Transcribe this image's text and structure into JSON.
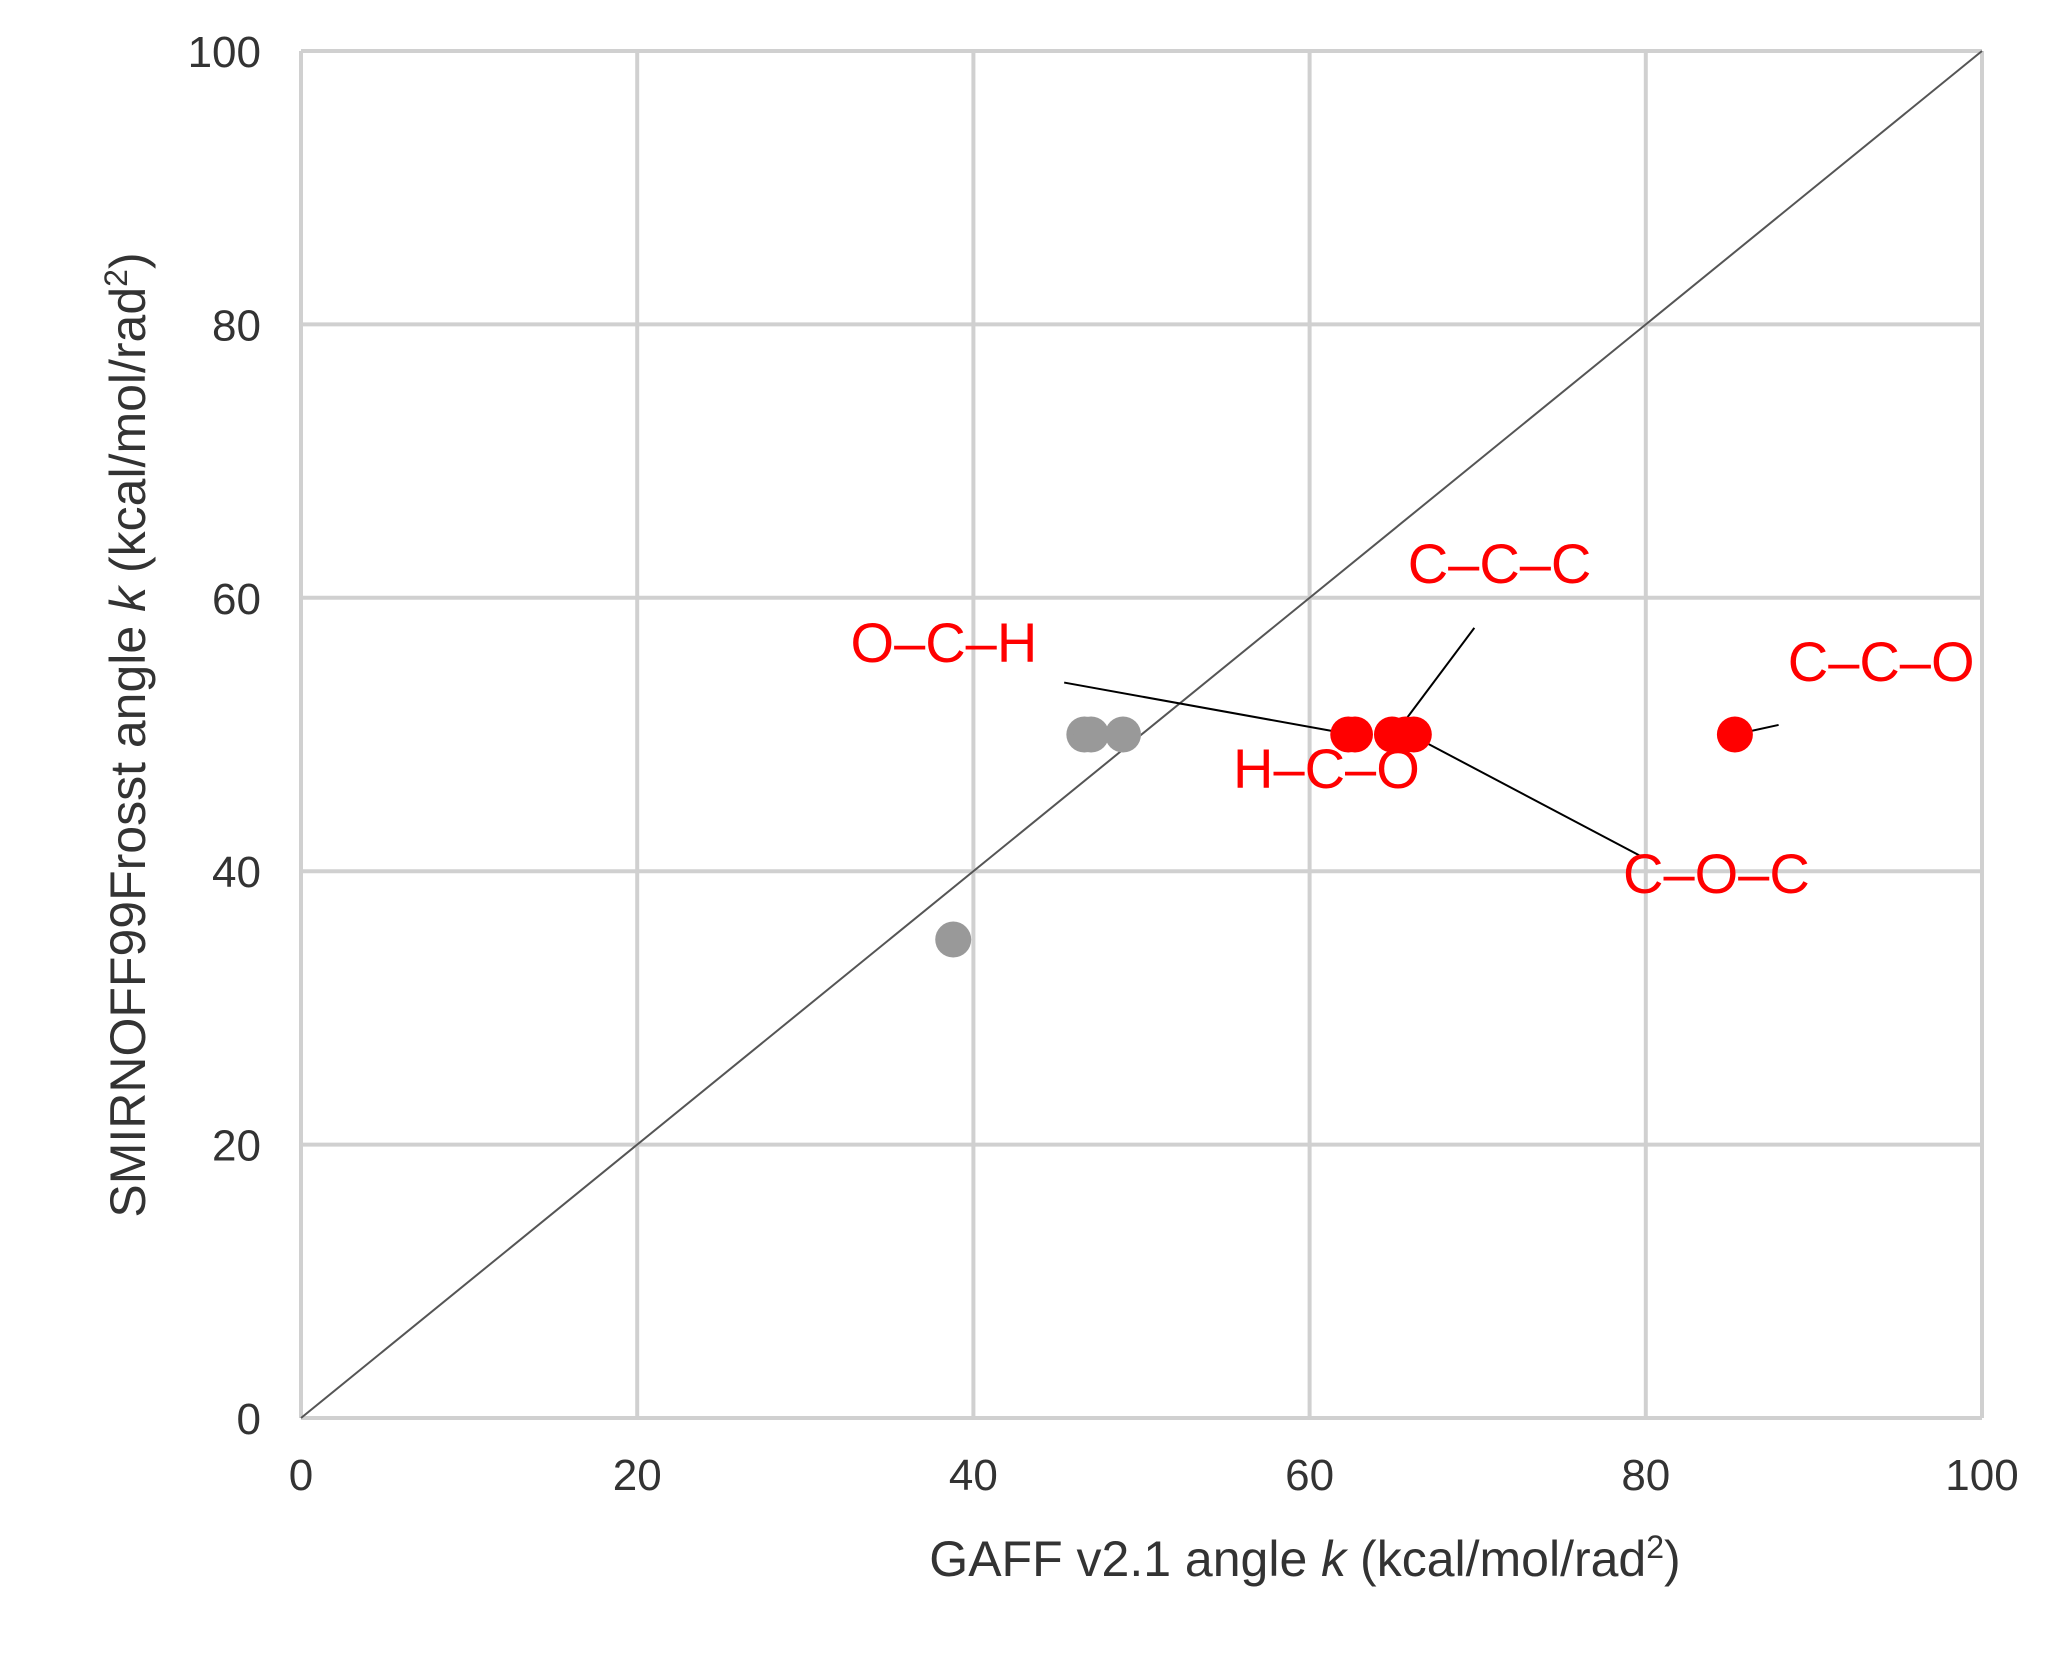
{
  "chart_data": {
    "type": "scatter",
    "title": "",
    "xlabel": {
      "main": "GAFF v2.1 angle ",
      "var": "k",
      "unit": " (kcal/mol/rad",
      "sup": "2",
      "close": ")"
    },
    "ylabel": {
      "main": "SMIRNOFF99Frosst angle ",
      "var": "k",
      "unit": " (kcal/mol/rad",
      "sup": "2",
      "close": ")"
    },
    "xlim": [
      0,
      100
    ],
    "ylim": [
      0,
      100
    ],
    "xticks": [
      0,
      20,
      40,
      60,
      80,
      100
    ],
    "yticks": [
      0,
      20,
      40,
      60,
      80,
      100
    ],
    "grid": true,
    "reference_line": {
      "x": [
        0,
        100
      ],
      "y": [
        0,
        100
      ],
      "color": "#555555"
    },
    "series": [
      {
        "color": "#999999",
        "points": [
          {
            "x": 38.8,
            "y": 35
          },
          {
            "x": 46.6,
            "y": 50
          },
          {
            "x": 47.0,
            "y": 50
          },
          {
            "x": 48.9,
            "y": 50
          }
        ]
      },
      {
        "color": "#ff0000",
        "points": [
          {
            "x": 62.3,
            "y": 50
          },
          {
            "x": 62.7,
            "y": 50
          },
          {
            "x": 64.9,
            "y": 50
          },
          {
            "x": 65.7,
            "y": 50
          },
          {
            "x": 66.2,
            "y": 50
          },
          {
            "x": 85.3,
            "y": 50
          }
        ]
      }
    ],
    "annotations": [
      {
        "text": "O–C–H",
        "text_x": 43.8,
        "text_y": 55.3,
        "anchor": "end",
        "line_from": [
          45.4,
          53.8
        ],
        "line_to": [
          62.5,
          50
        ]
      },
      {
        "text": "C–C–C",
        "text_x": 71.3,
        "text_y": 61.1,
        "anchor": "middle",
        "line_from": [
          69.8,
          57.8
        ],
        "line_to": [
          65.3,
          50.4
        ]
      },
      {
        "text": "H–C–O",
        "text_x": 61.0,
        "text_y": 46.1,
        "anchor": "middle",
        "line_from": null,
        "line_to": null
      },
      {
        "text": "C–C–O",
        "text_x": 94.0,
        "text_y": 53.9,
        "anchor": "middle",
        "line_from": [
          87.9,
          50.7
        ],
        "line_to": [
          85.3,
          50
        ]
      },
      {
        "text": "C–O–C",
        "text_x": 84.2,
        "text_y": 38.4,
        "anchor": "middle",
        "line_from": [
          79.7,
          41.1
        ],
        "line_to": [
          66.0,
          50
        ]
      }
    ],
    "colors": {
      "grid": "#d0d0d0",
      "gray_points": "#999999",
      "red_points": "#ff0000",
      "text": "#333333"
    }
  }
}
